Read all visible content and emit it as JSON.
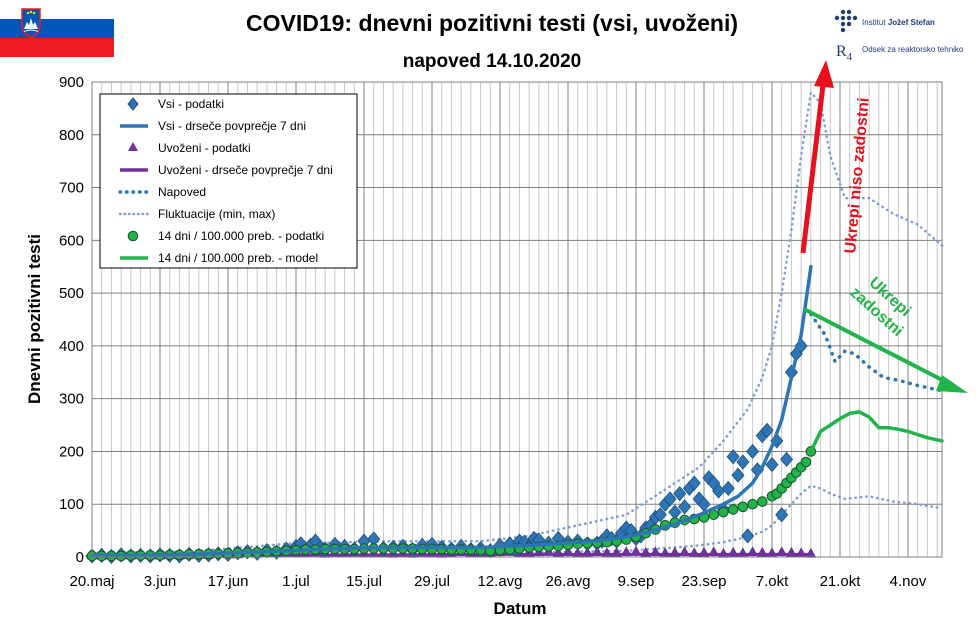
{
  "flag": {
    "colors": [
      "#ffffff",
      "#0057b8",
      "#ed1c24"
    ]
  },
  "logo": {
    "institute_prefix": "Institut",
    "institute_name": "Jožef Stefan",
    "dept_mark": "R",
    "dept_mark_sub": "4",
    "department": "Odsek za reaktorsko tehniko"
  },
  "chart_data": {
    "type": "scatter",
    "title": "COVID19: dnevni pozitivni testi (vsi, uvoženi)",
    "subtitle": "napoved 14.10.2020",
    "xlabel": "Datum",
    "ylabel": "Dnevni pozitivni  testi",
    "ylim": [
      0,
      900
    ],
    "yticks": [
      0,
      100,
      200,
      300,
      400,
      500,
      600,
      700,
      800,
      900
    ],
    "xlim_days": [
      0,
      175
    ],
    "x_unit": "days since 20.maj 2020",
    "xticks": [
      {
        "day": 0,
        "label": "20.maj"
      },
      {
        "day": 14,
        "label": "3.jun"
      },
      {
        "day": 28,
        "label": "17.jun"
      },
      {
        "day": 42,
        "label": "1.jul"
      },
      {
        "day": 56,
        "label": "15.jul"
      },
      {
        "day": 70,
        "label": "29.jul"
      },
      {
        "day": 84,
        "label": "12.avg"
      },
      {
        "day": 98,
        "label": "26.avg"
      },
      {
        "day": 112,
        "label": "9.sep"
      },
      {
        "day": 126,
        "label": "23.sep"
      },
      {
        "day": 140,
        "label": "7.okt"
      },
      {
        "day": 154,
        "label": "21.okt"
      },
      {
        "day": 168,
        "label": "4.nov"
      }
    ],
    "legend": {
      "position": "top-left",
      "entries": [
        {
          "key": "vsi_points",
          "label": "Vsi - podatki"
        },
        {
          "key": "vsi_ma",
          "label": "Vsi - drseče povprečje 7 dni"
        },
        {
          "key": "uvozeni_points",
          "label": "Uvoženi - podatki"
        },
        {
          "key": "uvozeni_ma",
          "label": "Uvoženi - drseče povprečje 7 dni"
        },
        {
          "key": "napoved",
          "label": "Napoved"
        },
        {
          "key": "fluktuacije",
          "label": "Fluktuacije (min, max)"
        },
        {
          "key": "d14_points",
          "label": "14 dni / 100.000 preb. - podatki"
        },
        {
          "key": "d14_model",
          "label": "14 dni / 100.000 preb. - model"
        }
      ]
    },
    "annotations": [
      {
        "text": "Ukrepi niso zadostni",
        "color": "#e8101c"
      },
      {
        "text": "Ukrepi zadostni",
        "color": "#22b34a"
      }
    ],
    "colors": {
      "vsi": "#2e75b6",
      "vsi_edge": "#1f4e79",
      "uvozeni": "#7030a0",
      "napoved": "#2e75b6",
      "fluktuacije": "#7f9fd4",
      "d14_fill": "#22b34a",
      "d14_edge": "#14532d",
      "model": "#22b34a",
      "red_arrow": "#e8101c",
      "green_arrow": "#22b34a",
      "grid": "#a6a6a6"
    },
    "series": [
      {
        "name": "Vsi - podatki",
        "type": "scatter",
        "marker": "diamond",
        "x": [
          0,
          2,
          4,
          6,
          8,
          10,
          12,
          14,
          16,
          18,
          20,
          22,
          24,
          26,
          28,
          30,
          32,
          34,
          36,
          38,
          40,
          42,
          43,
          45,
          46,
          47,
          48,
          50,
          52,
          54,
          56,
          58,
          60,
          62,
          64,
          66,
          68,
          70,
          72,
          74,
          76,
          78,
          80,
          82,
          84,
          86,
          87,
          88,
          89,
          90,
          91,
          92,
          94,
          96,
          98,
          100,
          102,
          104,
          105,
          106,
          107,
          108,
          109,
          110,
          111,
          112,
          113,
          114,
          115,
          116,
          117,
          118,
          119,
          120,
          121,
          122,
          123,
          124,
          125,
          126,
          127,
          128,
          129,
          130,
          131,
          132,
          133,
          134,
          135,
          136,
          137,
          138,
          139,
          140,
          141,
          142,
          143,
          144,
          145,
          146
        ],
        "y": [
          2,
          3,
          1,
          4,
          2,
          3,
          2,
          4,
          3,
          2,
          5,
          3,
          4,
          6,
          5,
          8,
          10,
          7,
          12,
          9,
          15,
          20,
          25,
          22,
          30,
          18,
          15,
          24,
          20,
          15,
          30,
          34,
          16,
          18,
          20,
          14,
          22,
          24,
          18,
          15,
          20,
          14,
          16,
          12,
          22,
          25,
          15,
          30,
          28,
          20,
          35,
          32,
          26,
          35,
          28,
          30,
          25,
          26,
          30,
          40,
          35,
          30,
          45,
          55,
          50,
          35,
          40,
          55,
          60,
          75,
          80,
          100,
          110,
          85,
          120,
          95,
          130,
          140,
          110,
          100,
          150,
          140,
          125,
          90,
          130,
          190,
          155,
          180,
          40,
          200,
          165,
          230,
          240,
          175,
          220,
          80,
          185,
          350,
          385,
          400
        ]
      },
      {
        "name": "Vsi - drseče povprečje 7 dni",
        "type": "line",
        "x": [
          0,
          10,
          20,
          30,
          40,
          50,
          60,
          70,
          80,
          85,
          90,
          95,
          100,
          105,
          110,
          115,
          120,
          125,
          130,
          133,
          136,
          138,
          140,
          142,
          144,
          146,
          148
        ],
        "y": [
          3,
          3,
          5,
          8,
          12,
          16,
          18,
          18,
          18,
          20,
          22,
          25,
          28,
          32,
          38,
          48,
          62,
          80,
          100,
          115,
          140,
          170,
          210,
          260,
          340,
          420,
          550
        ]
      },
      {
        "name": "Uvoženi - podatki",
        "type": "scatter",
        "marker": "triangle",
        "x": [
          0,
          2,
          4,
          6,
          8,
          10,
          12,
          14,
          16,
          18,
          20,
          22,
          24,
          26,
          28,
          30,
          32,
          34,
          36,
          38,
          40,
          42,
          44,
          46,
          48,
          50,
          52,
          54,
          56,
          58,
          60,
          62,
          64,
          66,
          68,
          70,
          72,
          74,
          76,
          78,
          80,
          82,
          84,
          86,
          88,
          90,
          92,
          94,
          96,
          98,
          100,
          102,
          104,
          106,
          108,
          110,
          112,
          114,
          116,
          118,
          120,
          122,
          124,
          126,
          128,
          130,
          132,
          134,
          136,
          138,
          140,
          142,
          144,
          146,
          148
        ],
        "y": [
          0,
          0,
          0,
          1,
          0,
          1,
          0,
          0,
          1,
          0,
          1,
          2,
          1,
          3,
          2,
          2,
          4,
          3,
          5,
          4,
          6,
          5,
          4,
          6,
          3,
          5,
          4,
          6,
          5,
          4,
          5,
          3,
          4,
          3,
          4,
          5,
          3,
          4,
          6,
          5,
          4,
          5,
          6,
          8,
          4,
          5,
          6,
          7,
          5,
          6,
          4,
          5,
          6,
          4,
          5,
          6,
          7,
          5,
          6,
          4,
          5,
          6,
          4,
          5,
          6,
          3,
          5,
          4,
          6,
          5,
          4,
          6,
          5,
          4,
          3
        ]
      },
      {
        "name": "Uvoženi - drseče povprečje 7 dni",
        "type": "line",
        "x": [
          0,
          20,
          40,
          60,
          80,
          100,
          120,
          140,
          148
        ],
        "y": [
          0,
          1,
          4,
          4,
          5,
          5,
          5,
          5,
          5
        ]
      },
      {
        "name": "Napoved",
        "type": "line",
        "style": "dotted",
        "x": [
          148,
          151,
          153,
          155,
          157,
          160,
          163,
          166,
          170,
          175
        ],
        "y": [
          460,
          420,
          370,
          390,
          385,
          360,
          340,
          335,
          325,
          315
        ]
      },
      {
        "name": "Fluktuacije max",
        "type": "line",
        "style": "dotted",
        "x": [
          0,
          20,
          40,
          60,
          80,
          90,
          100,
          110,
          120,
          125,
          130,
          135,
          138,
          140,
          142,
          144,
          146,
          148,
          150,
          152,
          155,
          160,
          165,
          170,
          175
        ],
        "y": [
          8,
          10,
          25,
          30,
          30,
          40,
          60,
          80,
          140,
          170,
          220,
          280,
          340,
          400,
          500,
          620,
          760,
          880,
          860,
          760,
          680,
          680,
          650,
          630,
          590
        ]
      },
      {
        "name": "Fluktuacije min",
        "type": "line",
        "style": "dotted",
        "x": [
          0,
          20,
          40,
          60,
          80,
          90,
          100,
          110,
          120,
          125,
          130,
          135,
          138,
          140,
          142,
          144,
          146,
          148,
          150,
          152,
          155,
          160,
          165,
          170,
          175
        ],
        "y": [
          0,
          0,
          2,
          4,
          6,
          8,
          10,
          12,
          18,
          22,
          28,
          38,
          48,
          60,
          80,
          100,
          120,
          135,
          130,
          120,
          110,
          115,
          105,
          100,
          92
        ]
      },
      {
        "name": "14 dni / 100.000 preb. - podatki",
        "type": "scatter",
        "marker": "circle",
        "x": [
          0,
          2,
          4,
          6,
          8,
          10,
          12,
          14,
          16,
          18,
          20,
          22,
          24,
          26,
          28,
          30,
          32,
          34,
          36,
          38,
          40,
          42,
          44,
          46,
          48,
          50,
          52,
          54,
          56,
          58,
          60,
          62,
          64,
          66,
          68,
          70,
          72,
          74,
          76,
          78,
          80,
          82,
          84,
          86,
          88,
          90,
          92,
          94,
          96,
          98,
          100,
          102,
          104,
          106,
          108,
          110,
          112,
          114,
          116,
          118,
          120,
          122,
          124,
          126,
          128,
          130,
          132,
          134,
          136,
          138,
          140,
          141,
          142,
          143,
          144,
          145,
          146,
          147,
          148
        ],
        "y": [
          2,
          2,
          2,
          2,
          3,
          3,
          3,
          3,
          4,
          4,
          5,
          5,
          6,
          6,
          7,
          8,
          8,
          9,
          10,
          11,
          12,
          13,
          14,
          14,
          15,
          15,
          15,
          15,
          16,
          16,
          16,
          16,
          16,
          16,
          15,
          15,
          15,
          14,
          14,
          14,
          13,
          12,
          13,
          14,
          16,
          18,
          19,
          20,
          21,
          23,
          25,
          26,
          27,
          28,
          30,
          33,
          38,
          45,
          52,
          60,
          65,
          70,
          72,
          75,
          80,
          85,
          90,
          95,
          100,
          105,
          115,
          120,
          130,
          140,
          150,
          160,
          170,
          180,
          200
        ]
      },
      {
        "name": "14 dni / 100.000 preb. - model",
        "type": "line",
        "x": [
          148,
          150,
          152,
          154,
          156,
          158,
          160,
          162,
          164,
          166,
          168,
          170,
          172,
          175
        ],
        "y": [
          200,
          238,
          250,
          262,
          272,
          275,
          265,
          245,
          245,
          242,
          238,
          232,
          226,
          220
        ]
      }
    ]
  }
}
